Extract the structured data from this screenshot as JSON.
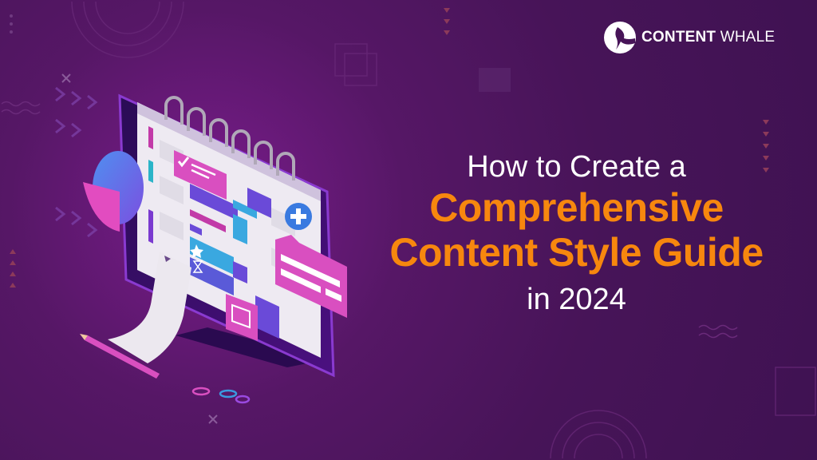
{
  "brand": {
    "logo_bold": "CONTENT",
    "logo_light": " WHALE",
    "icon": "whale-tail-logo-icon"
  },
  "headline": {
    "line1": "How to Create a",
    "line2": "Comprehensive",
    "line3": "Content Style Guide",
    "line4": "in 2024"
  },
  "colors": {
    "background": "#471458",
    "accent": "#f7870e",
    "text": "#ffffff",
    "pink": "#d94fc0",
    "blue": "#3aa8e0"
  },
  "illustration": {
    "icons": [
      "monitor-icon",
      "calendar-icon",
      "pie-chart-icon",
      "checkmark-icon",
      "plus-icon",
      "star-icon",
      "hourglass-icon",
      "image-icon",
      "pencil-icon",
      "paperclip-icon",
      "receipt-icon"
    ]
  }
}
